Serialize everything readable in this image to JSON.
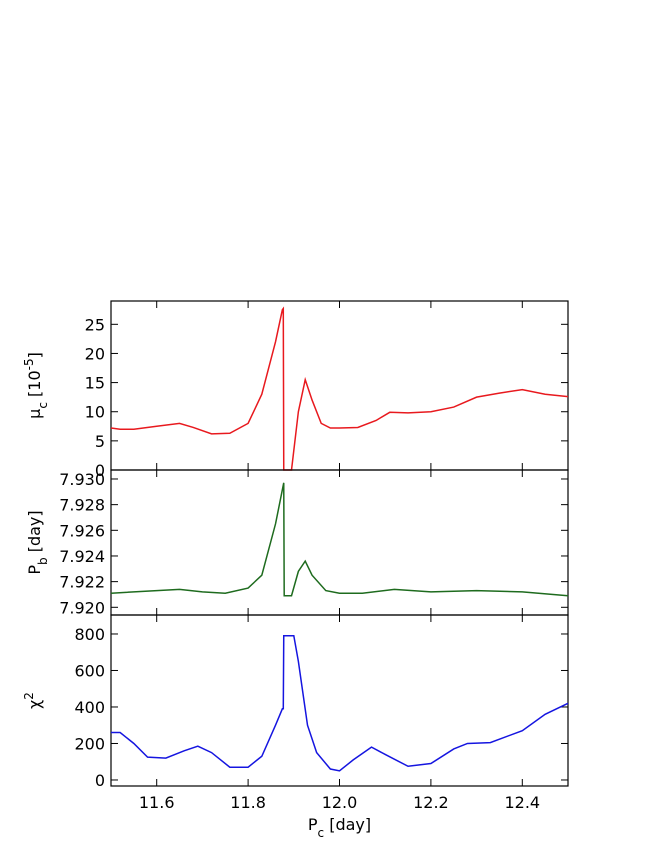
{
  "chart_data": [
    {
      "type": "line",
      "ylabel": [
        {
          "text": "μ"
        },
        {
          "text": "c",
          "shift": "sub"
        },
        {
          "text": " [10"
        },
        {
          "text": "-5",
          "shift": "super"
        },
        {
          "text": "]"
        }
      ],
      "xlim": [
        11.5,
        12.5
      ],
      "xticks": [
        11.6,
        11.8,
        {
          "value": 12,
          "label": "12.0"
        },
        12.2,
        12.4
      ],
      "ylim": [
        0,
        29
      ],
      "yticks": [
        0,
        5,
        10,
        15,
        20,
        25
      ],
      "series": [
        {
          "color": "#e8191e",
          "x": [
            11.5,
            11.52,
            11.55,
            11.6,
            11.65,
            11.68,
            11.72,
            11.76,
            11.8,
            11.83,
            11.86,
            11.875,
            11.877,
            11.878,
            11.895,
            11.91,
            11.925,
            11.94,
            11.96,
            11.98,
            12.0,
            12.04,
            12.08,
            12.11,
            12.15,
            12.2,
            12.25,
            12.3,
            12.35,
            12.4,
            12.45,
            12.5
          ],
          "values": [
            7.2,
            7.0,
            7.0,
            7.5,
            8.0,
            7.3,
            6.2,
            6.3,
            8.0,
            13,
            22,
            27.5,
            27.7,
            0,
            0,
            10,
            15.5,
            12,
            8,
            7.2,
            7.2,
            7.3,
            8.5,
            9.9,
            9.8,
            10.0,
            10.8,
            12.5,
            13.2,
            13.8,
            13.0,
            12.6
          ]
        }
      ]
    },
    {
      "type": "line",
      "ylabel": [
        {
          "text": "P"
        },
        {
          "text": "b",
          "shift": "sub"
        },
        {
          "text": " [day]"
        }
      ],
      "xlim": [
        11.5,
        12.5
      ],
      "xticks": [
        11.6,
        11.8,
        12,
        12.2,
        12.4
      ],
      "ylim": [
        7.9194,
        7.9307
      ],
      "yticks": [
        {
          "value": 7.92,
          "label": "7.920"
        },
        {
          "value": 7.922,
          "label": "7.922"
        },
        {
          "value": 7.924,
          "label": "7.924"
        },
        {
          "value": 7.926,
          "label": "7.926"
        },
        {
          "value": 7.928,
          "label": "7.928"
        },
        {
          "value": 7.93,
          "label": "7.930"
        }
      ],
      "series": [
        {
          "color": "#1e6b1e",
          "x": [
            11.5,
            11.6,
            11.65,
            11.7,
            11.75,
            11.8,
            11.83,
            11.86,
            11.878,
            11.879,
            11.895,
            11.91,
            11.925,
            11.94,
            11.97,
            12.0,
            12.05,
            12.12,
            12.2,
            12.3,
            12.4,
            12.5
          ],
          "values": [
            7.9211,
            7.9213,
            7.9214,
            7.9212,
            7.9211,
            7.9215,
            7.9225,
            7.9265,
            7.9297,
            7.9209,
            7.9209,
            7.9228,
            7.9236,
            7.9225,
            7.9213,
            7.9211,
            7.9211,
            7.9214,
            7.9212,
            7.9213,
            7.9212,
            7.9209
          ]
        }
      ]
    },
    {
      "type": "line",
      "ylabel": [
        {
          "text": "χ"
        },
        {
          "text": "2",
          "shift": "super"
        }
      ],
      "xlabel": [
        {
          "text": "P"
        },
        {
          "text": "c",
          "shift": "sub"
        },
        {
          "text": " [day]"
        }
      ],
      "xlim": [
        11.5,
        12.5
      ],
      "xticks": [
        11.6,
        11.8,
        {
          "value": 12,
          "label": "12.0"
        },
        12.2,
        12.4
      ],
      "ylim": [
        -33,
        904
      ],
      "yticks": [
        0,
        200,
        400,
        600,
        800
      ],
      "series": [
        {
          "color": "#1515e0",
          "x": [
            11.5,
            11.52,
            11.55,
            11.58,
            11.62,
            11.66,
            11.69,
            11.72,
            11.76,
            11.8,
            11.83,
            11.86,
            11.875,
            11.877,
            11.878,
            11.9,
            11.91,
            11.93,
            11.95,
            11.98,
            12.0,
            12.03,
            12.07,
            12.1,
            12.15,
            12.2,
            12.25,
            12.28,
            12.33,
            12.4,
            12.45,
            12.5
          ],
          "values": [
            260,
            260,
            200,
            125,
            120,
            160,
            185,
            150,
            70,
            70,
            130,
            300,
            390,
            390,
            790,
            790,
            650,
            300,
            150,
            60,
            50,
            110,
            180,
            140,
            75,
            90,
            170,
            200,
            205,
            270,
            360,
            420
          ]
        }
      ]
    }
  ]
}
